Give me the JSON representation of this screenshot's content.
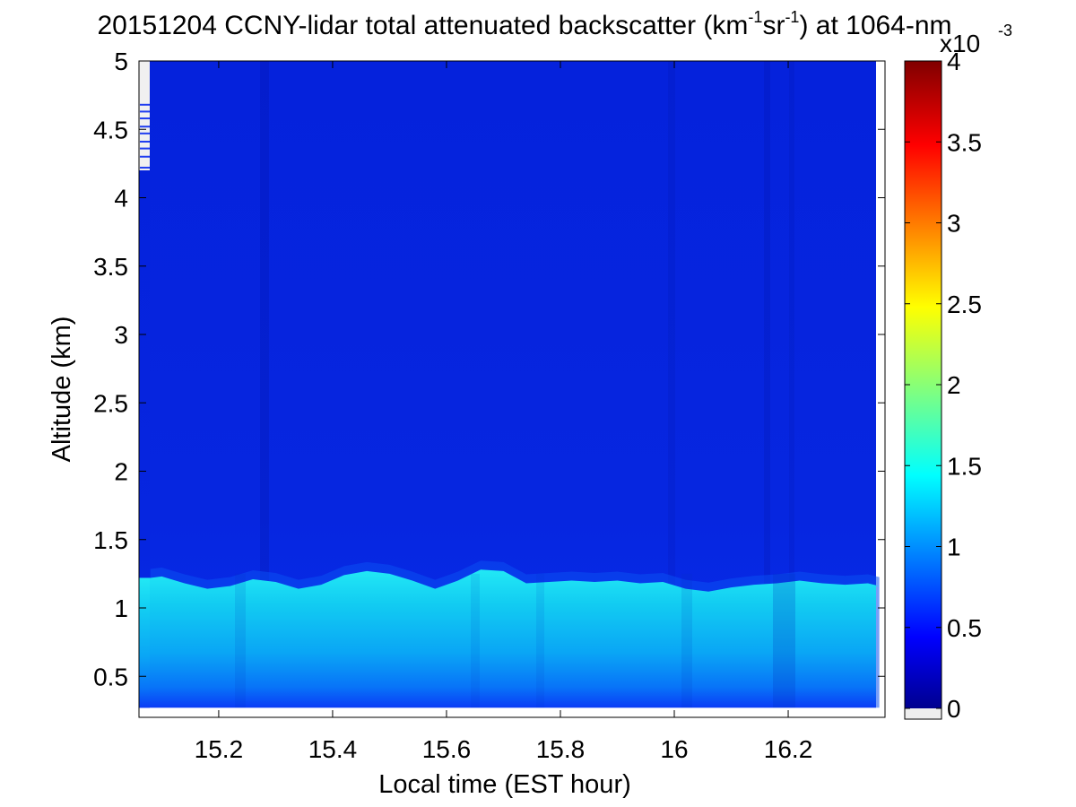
{
  "chart_data": {
    "type": "heatmap",
    "title": {
      "prefix": "20151204 CCNY-lidar total attenuated backscatter (km",
      "sup1": "-1",
      "mid": "sr",
      "sup2": "-1",
      "suffix": ") at 1064-nm"
    },
    "xlabel": "Local time (EST hour)",
    "ylabel": "Altitude (km)",
    "xlim": [
      15.06,
      16.37
    ],
    "ylim": [
      0.2,
      5.0
    ],
    "x_ticks": [
      "15.2",
      "15.4",
      "15.6",
      "15.8",
      "16",
      "16.2"
    ],
    "y_ticks": [
      "0.5",
      "1",
      "1.5",
      "2",
      "2.5",
      "3",
      "3.5",
      "4",
      "4.5",
      "5"
    ],
    "colorbar": {
      "colormap": "jet",
      "range": [
        0,
        4
      ],
      "ticks": [
        "0",
        "0.5",
        "1",
        "1.5",
        "2",
        "2.5",
        "3",
        "3.5",
        "4"
      ],
      "multiplier_base": "x10",
      "multiplier_exp": "-3"
    },
    "data_start_altitude_km": 0.27,
    "boundary_layer_top_km": {
      "x": [
        15.08,
        15.1,
        15.14,
        15.18,
        15.22,
        15.26,
        15.3,
        15.34,
        15.38,
        15.42,
        15.46,
        15.5,
        15.54,
        15.58,
        15.62,
        15.66,
        15.7,
        15.74,
        15.78,
        15.82,
        15.86,
        15.9,
        15.94,
        15.98,
        16.02,
        16.06,
        16.1,
        16.14,
        16.18,
        16.22,
        16.26,
        16.3,
        16.34,
        16.36
      ],
      "y": [
        1.22,
        1.23,
        1.18,
        1.14,
        1.16,
        1.21,
        1.19,
        1.14,
        1.17,
        1.24,
        1.27,
        1.25,
        1.2,
        1.14,
        1.2,
        1.28,
        1.27,
        1.18,
        1.19,
        1.2,
        1.19,
        1.2,
        1.18,
        1.19,
        1.14,
        1.12,
        1.15,
        1.17,
        1.18,
        1.2,
        1.18,
        1.17,
        1.18,
        1.16
      ]
    }
  }
}
